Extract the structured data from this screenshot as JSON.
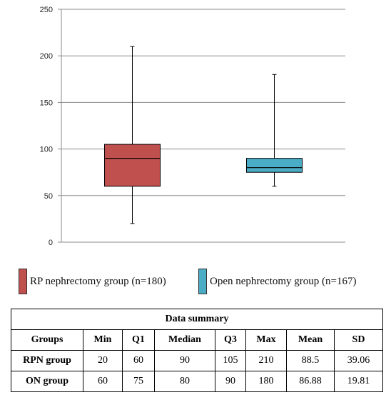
{
  "chart_data": {
    "type": "box",
    "ylim": [
      0,
      250
    ],
    "yticks": [
      0,
      50,
      100,
      150,
      200,
      250
    ],
    "grid": true,
    "series": [
      {
        "name": "RP nephrectomy group (n=180)",
        "color": "#c0504d",
        "min": 20,
        "q1": 60,
        "median": 90,
        "q3": 105,
        "max": 210
      },
      {
        "name": "Open nephrectomy group (n=167)",
        "color": "#4bacc6",
        "min": 60,
        "q1": 75,
        "median": 80,
        "q3": 90,
        "max": 180
      }
    ]
  },
  "table": {
    "title": "Data summary",
    "headers": [
      "Groups",
      "Min",
      "Q1",
      "Median",
      "Q3",
      "Max",
      "Mean",
      "SD"
    ],
    "rows": [
      [
        "RPN group",
        "20",
        "60",
        "90",
        "105",
        "210",
        "88.5",
        "39.06"
      ],
      [
        "ON group",
        "60",
        "75",
        "80",
        "90",
        "180",
        "86.88",
        "19.81"
      ]
    ]
  }
}
